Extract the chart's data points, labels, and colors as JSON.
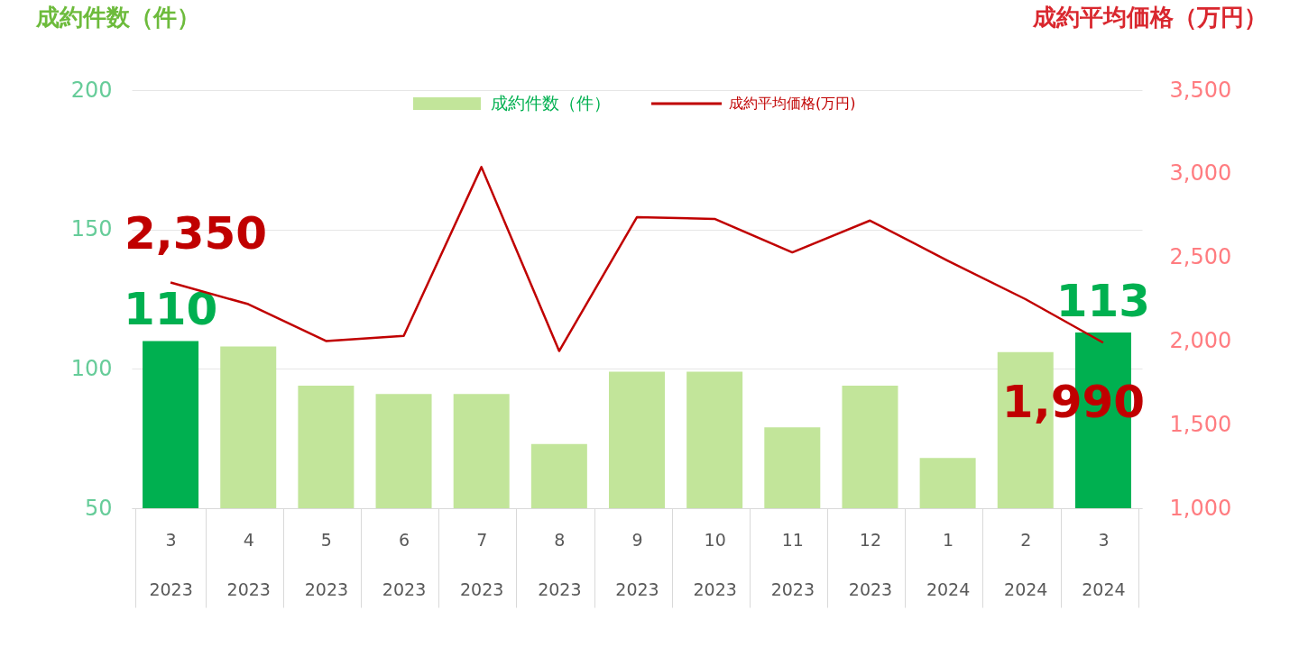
{
  "chart_data": {
    "type": "bar",
    "ylabel": "成約件数（件）",
    "y2label": "成約平均価格（万円）",
    "categories": [
      "3\n2023",
      "4\n2023",
      "5\n2023",
      "6\n2023",
      "7\n2023",
      "8\n2023",
      "9\n2023",
      "10\n2023",
      "11\n2023",
      "12\n2023",
      "1\n2024",
      "2\n2024",
      "3\n2024"
    ],
    "series": [
      {
        "name": "成約件数（件）",
        "color": "#c2e59a",
        "colors": [
          "#00b050",
          "#c2e59a",
          "#c2e59a",
          "#c2e59a",
          "#c2e59a",
          "#c2e59a",
          "#c2e59a",
          "#c2e59a",
          "#c2e59a",
          "#c2e59a",
          "#c2e59a",
          "#c2e59a",
          "#00b050"
        ],
        "values": [
          110,
          108,
          94,
          91,
          91,
          73,
          99,
          99,
          79,
          94,
          68,
          106,
          113
        ],
        "value_labels": [
          "110",
          null,
          null,
          null,
          null,
          null,
          null,
          null,
          null,
          null,
          null,
          null,
          "113"
        ]
      },
      {
        "name": "成約平均価格(万円)",
        "type": "line",
        "axis": "y2",
        "color": "#c00000",
        "values": [
          2350,
          2220,
          2000,
          2030,
          3040,
          1940,
          2740,
          2730,
          2530,
          2720,
          2480,
          2250,
          1990
        ],
        "value_labels": [
          "2,350",
          null,
          null,
          null,
          null,
          null,
          null,
          null,
          null,
          null,
          null,
          null,
          "1,990"
        ]
      }
    ],
    "ylim": [
      50,
      200
    ],
    "yticks": [
      50,
      100,
      150,
      200
    ],
    "y2lim": [
      1000,
      3500
    ],
    "y2ticks": [
      {
        "value": 1000,
        "label": "1,000"
      },
      {
        "value": 1500,
        "label": "1,500"
      },
      {
        "value": 2000,
        "label": "2,000"
      },
      {
        "value": 2500,
        "label": "2,500"
      },
      {
        "value": 3000,
        "label": "3,000"
      },
      {
        "value": 3500,
        "label": "3,500"
      }
    ],
    "grid": "y",
    "legend": "top"
  }
}
